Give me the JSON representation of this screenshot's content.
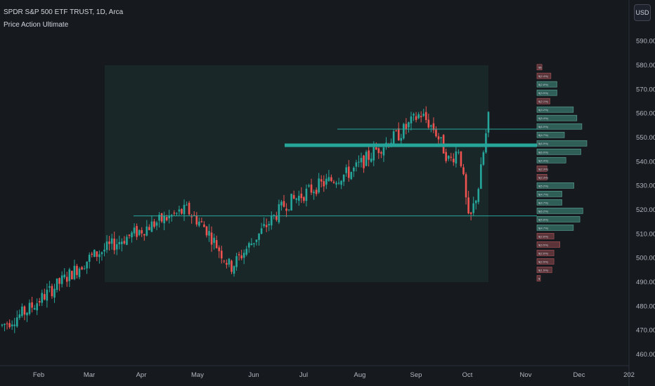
{
  "header": {
    "symbol_line": "SPDR S&P 500 ETF TRUST, 1D, Arca",
    "indicator": "Price Action Ultimate"
  },
  "currency_button": "USD",
  "colors": {
    "background": "#161a1e",
    "up": "#26a69a",
    "down": "#ef5350",
    "range_box": "#1b2a2c",
    "level_line": "#26a69a"
  },
  "chart_data": {
    "type": "candlestick",
    "y_axis": {
      "ticks": [
        460,
        470,
        480,
        490,
        500,
        510,
        520,
        530,
        540,
        550,
        560,
        570,
        580,
        590
      ],
      "tick_labels": [
        "460.00",
        "470.00",
        "480.00",
        "490.00",
        "500.00",
        "510.00",
        "520.00",
        "530.00",
        "540.00",
        "550.00",
        "560.00",
        "570.00",
        "580.00",
        "590.00"
      ]
    },
    "x_axis": {
      "labels": [
        "Feb",
        "Mar",
        "Apr",
        "May",
        "Jun",
        "Jul",
        "Aug",
        "Sep",
        "Oct",
        "Nov",
        "Dec",
        "202"
      ]
    },
    "price_path": [
      [
        0,
        472
      ],
      [
        0.05,
        478
      ],
      [
        0.12,
        490
      ],
      [
        0.18,
        500
      ],
      [
        0.25,
        508
      ],
      [
        0.32,
        515
      ],
      [
        0.38,
        520
      ],
      [
        0.42,
        512
      ],
      [
        0.47,
        496
      ],
      [
        0.52,
        508
      ],
      [
        0.58,
        522
      ],
      [
        0.65,
        530
      ],
      [
        0.72,
        536
      ],
      [
        0.77,
        545
      ],
      [
        0.82,
        552
      ],
      [
        0.86,
        560
      ],
      [
        0.89,
        553
      ],
      [
        0.92,
        540
      ],
      [
        0.94,
        546
      ],
      [
        0.96,
        514
      ],
      [
        0.98,
        530
      ],
      [
        1.0,
        558
      ]
    ],
    "range_box": {
      "top": 580,
      "bottom": 490
    },
    "levels": [
      {
        "price": 553.5,
        "thick": false
      },
      {
        "price": 546.8,
        "thick": true
      },
      {
        "price": 517.5,
        "thick": false
      }
    ],
    "volume_profile": [
      {
        "price": 579.2,
        "up": false,
        "label": "$$",
        "len": 0.1
      },
      {
        "price": 575.6,
        "up": false,
        "label": "$(2.4%)",
        "len": 0.28
      },
      {
        "price": 572.1,
        "up": true,
        "label": "$(2.8%)",
        "len": 0.4
      },
      {
        "price": 568.6,
        "up": true,
        "label": "$(3.5%)",
        "len": 0.4
      },
      {
        "price": 565.1,
        "up": false,
        "label": "$(2.1%)",
        "len": 0.26
      },
      {
        "price": 561.6,
        "up": true,
        "label": "$(3.2%)",
        "len": 0.73
      },
      {
        "price": 558.1,
        "up": true,
        "label": "$(5.4%)",
        "len": 0.8
      },
      {
        "price": 554.6,
        "up": true,
        "label": "$(6.0%)",
        "len": 0.9
      },
      {
        "price": 551.1,
        "up": true,
        "label": "$(4.7%)",
        "len": 0.55
      },
      {
        "price": 547.6,
        "up": true,
        "label": "$(6.9%)",
        "len": 1.0
      },
      {
        "price": 544.1,
        "up": true,
        "label": "$(6.0%)",
        "len": 0.88
      },
      {
        "price": 540.6,
        "up": true,
        "label": "$(4.4%)",
        "len": 0.58
      },
      {
        "price": 537.1,
        "up": false,
        "label": "$(2.3%)",
        "len": 0.2
      },
      {
        "price": 533.6,
        "up": false,
        "label": "$(2.3%)",
        "len": 0.2
      },
      {
        "price": 530.1,
        "up": true,
        "label": "$(5.2%)",
        "len": 0.74
      },
      {
        "price": 526.6,
        "up": true,
        "label": "$(4.7%)",
        "len": 0.5
      },
      {
        "price": 523.1,
        "up": true,
        "label": "$(4.7%)",
        "len": 0.5
      },
      {
        "price": 519.6,
        "up": true,
        "label": "$(6.2%)",
        "len": 0.92
      },
      {
        "price": 516.1,
        "up": true,
        "label": "$(5.8%)",
        "len": 0.86
      },
      {
        "price": 512.6,
        "up": true,
        "label": "$(4.7%)",
        "len": 0.73
      },
      {
        "price": 509.1,
        "up": false,
        "label": "$(2.6%)",
        "len": 0.34
      },
      {
        "price": 505.6,
        "up": false,
        "label": "$(3.5%)",
        "len": 0.46
      },
      {
        "price": 502.1,
        "up": false,
        "label": "$(2.6%)",
        "len": 0.34
      },
      {
        "price": 498.6,
        "up": false,
        "label": "$(2.5%)",
        "len": 0.34
      },
      {
        "price": 495.1,
        "up": false,
        "label": "$(1.5%)",
        "len": 0.3
      },
      {
        "price": 491.6,
        "up": false,
        "label": "$",
        "len": 0.07
      }
    ]
  }
}
